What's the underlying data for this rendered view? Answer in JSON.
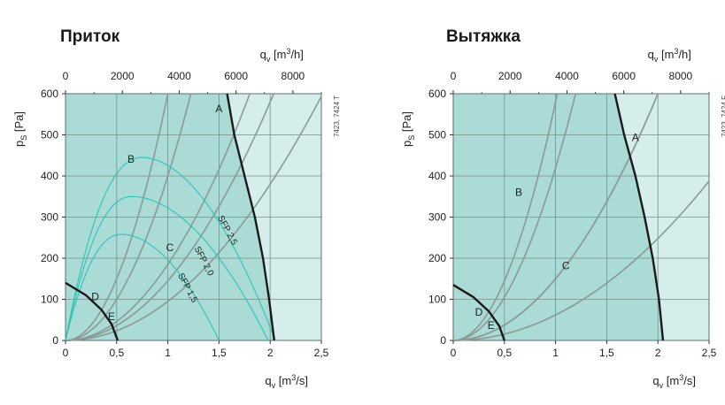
{
  "chart_data": [
    {
      "type": "line",
      "title": "Приток",
      "note": "7423, 7424 T",
      "xlabel": {
        "main": "q",
        "sub": "v",
        "unit_pre": "[m",
        "unit_sup": "3",
        "unit_post": "/s]"
      },
      "x2label": {
        "main": "q",
        "sub": "v",
        "unit_pre": "[m",
        "unit_sup": "3",
        "unit_post": "/h]"
      },
      "ylabel": {
        "main": "p",
        "sub": "S",
        "unit": "[Pa]"
      },
      "xlim": [
        0,
        2.5
      ],
      "x2lim": [
        0,
        9000
      ],
      "ylim": [
        0,
        600
      ],
      "xticks": [
        "0",
        "0,5",
        "1",
        "1,5",
        "2",
        "2,5"
      ],
      "x2ticks": [
        "0",
        "2000",
        "4000",
        "6000",
        "8000"
      ],
      "yticks": [
        "0",
        "100",
        "200",
        "300",
        "400",
        "500",
        "600"
      ],
      "colors": {
        "region": "#aadbd6",
        "outer": "#d6eeeb",
        "grid": "#7a8f8c",
        "system": "#8a9a98",
        "fan": "#1a1a1a",
        "sfp": "#2ec4b6"
      },
      "fan_curves": [
        {
          "points": [
            [
              1.58,
              600
            ],
            [
              1.65,
              500
            ],
            [
              1.75,
              400
            ],
            [
              1.85,
              300
            ],
            [
              1.93,
              200
            ],
            [
              1.99,
              100
            ],
            [
              2.04,
              0
            ]
          ]
        },
        {
          "points": [
            [
              0,
              140
            ],
            [
              0.2,
              110
            ],
            [
              0.35,
              75
            ],
            [
              0.45,
              40
            ],
            [
              0.51,
              0
            ]
          ]
        }
      ],
      "system_curves": [
        {
          "name": "A",
          "k": 185
        },
        {
          "name": "B",
          "k": 600
        },
        {
          "name": "C",
          "k": 95
        },
        {
          "name": "D",
          "k": 400
        },
        {
          "name": "E",
          "k": 145
        }
      ],
      "curve_labels": [
        {
          "name": "A",
          "x": 1.5,
          "y": 555
        },
        {
          "name": "B",
          "x": 0.64,
          "y": 432
        },
        {
          "name": "C",
          "x": 1.02,
          "y": 217
        },
        {
          "name": "D",
          "x": 0.29,
          "y": 98
        },
        {
          "name": "E",
          "x": 0.45,
          "y": 50
        }
      ],
      "sfp_curves": [
        {
          "name": "SFP 2,5",
          "x0": 0,
          "x1": 2.05,
          "peak_x": 0.75,
          "peak_y": 445
        },
        {
          "name": "SFP 2,0",
          "x0": 0,
          "x1": 1.98,
          "peak_x": 0.65,
          "peak_y": 350
        },
        {
          "name": "SFP 1,5",
          "x0": 0,
          "x1": 1.5,
          "peak_x": 0.55,
          "peak_y": 258
        }
      ],
      "sfp_labels": [
        {
          "name": "SFP 2,5",
          "x": 1.56,
          "y": 265,
          "angle": 62
        },
        {
          "name": "SFP 2,0",
          "x": 1.33,
          "y": 190,
          "angle": 62
        },
        {
          "name": "SFP 1,5",
          "x": 1.17,
          "y": 125,
          "angle": 62
        }
      ],
      "region_right_x": 2.04,
      "grid": true
    },
    {
      "type": "line",
      "title": "Вытяжка",
      "note": "7423, 7424 F",
      "xlabel": {
        "main": "q",
        "sub": "v",
        "unit_pre": "[m",
        "unit_sup": "3",
        "unit_post": "/s]"
      },
      "x2label": {
        "main": "q",
        "sub": "v",
        "unit_pre": "[m",
        "unit_sup": "3",
        "unit_post": "/h]"
      },
      "ylabel": {
        "main": "p",
        "sub": "S",
        "unit": "[Pa]"
      },
      "xlim": [
        0,
        2.5
      ],
      "x2lim": [
        0,
        9000
      ],
      "ylim": [
        0,
        600
      ],
      "xticks": [
        "0",
        "0,5",
        "1",
        "1,5",
        "2",
        "2,5"
      ],
      "x2ticks": [
        "0",
        "2000",
        "4000",
        "6000",
        "8000"
      ],
      "yticks": [
        "0",
        "100",
        "200",
        "300",
        "400",
        "500",
        "600"
      ],
      "colors": {
        "region": "#aadbd6",
        "outer": "#d6eeeb",
        "grid": "#7a8f8c",
        "system": "#8a9a98",
        "fan": "#1a1a1a"
      },
      "fan_curves": [
        {
          "points": [
            [
              1.58,
              600
            ],
            [
              1.67,
              500
            ],
            [
              1.78,
              400
            ],
            [
              1.87,
              300
            ],
            [
              1.95,
              200
            ],
            [
              2.01,
              100
            ],
            [
              2.05,
              0
            ]
          ]
        },
        {
          "points": [
            [
              0,
              135
            ],
            [
              0.2,
              105
            ],
            [
              0.35,
              70
            ],
            [
              0.45,
              35
            ],
            [
              0.5,
              0
            ]
          ]
        }
      ],
      "system_curves": [
        {
          "name": "A",
          "k": 150
        },
        {
          "name": "B",
          "k": 580
        },
        {
          "name": "C",
          "k": 62
        },
        {
          "name": "D",
          "k": 420
        },
        {
          "name": "E",
          "k": 150
        }
      ],
      "curve_labels": [
        {
          "name": "A",
          "x": 1.78,
          "y": 485
        },
        {
          "name": "B",
          "x": 0.64,
          "y": 352
        },
        {
          "name": "C",
          "x": 1.1,
          "y": 173
        },
        {
          "name": "D",
          "x": 0.25,
          "y": 60
        },
        {
          "name": "E",
          "x": 0.37,
          "y": 28
        }
      ],
      "sfp_curves": [],
      "sfp_labels": [],
      "region_right_x": 2.05,
      "grid": true
    }
  ]
}
